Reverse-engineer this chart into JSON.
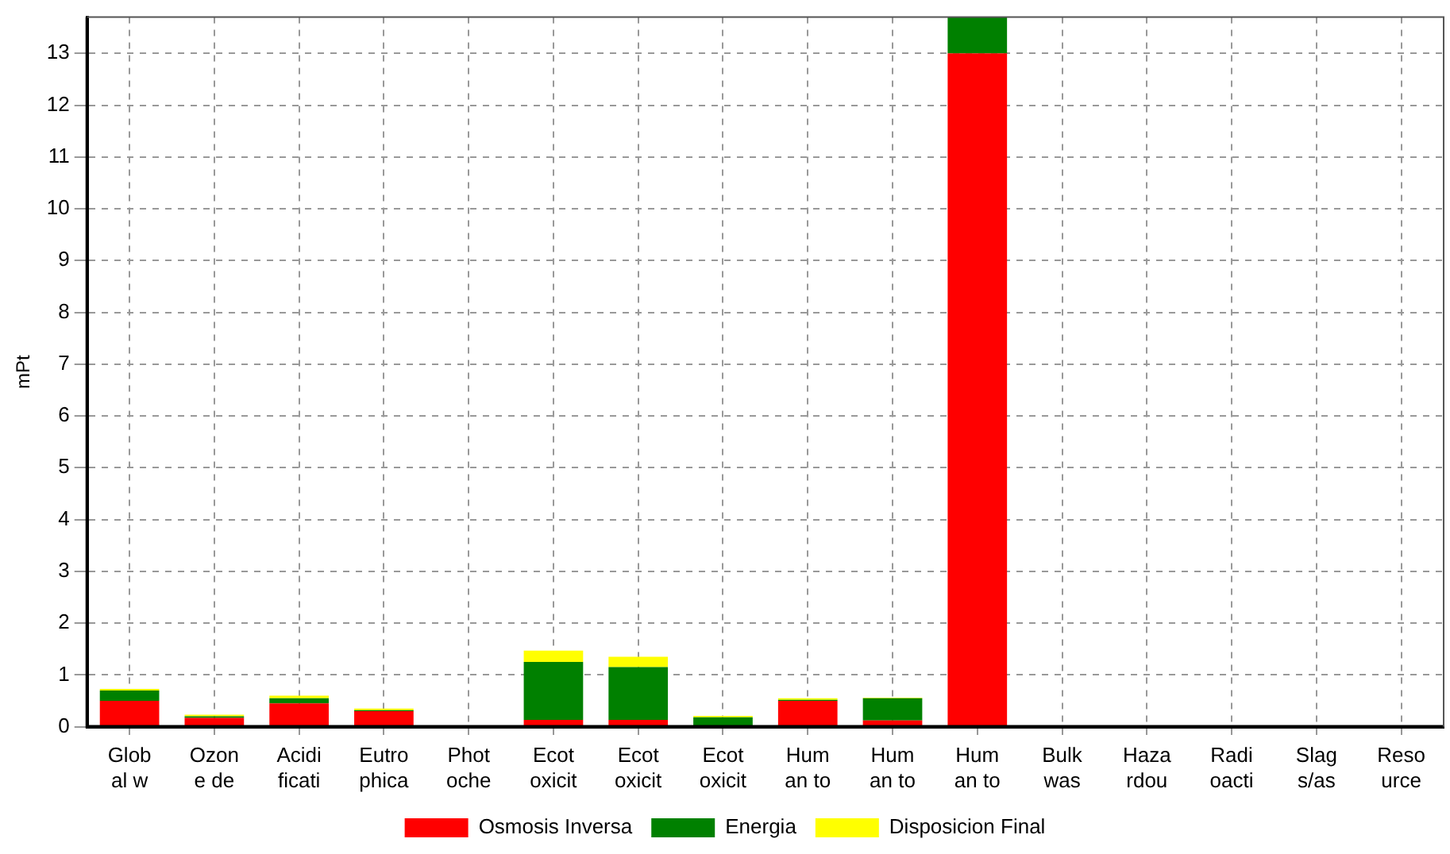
{
  "chart_data": {
    "type": "bar",
    "stacked": true,
    "ylabel": "mPt",
    "categories": [
      "Glob al w",
      "Ozon e de",
      "Acidi ficati",
      "Eutro phica",
      "Phot oche",
      "Ecot oxicit",
      "Ecot oxicit",
      "Ecot oxicit",
      "Hum an to",
      "Hum an to",
      "Hum an to",
      "Bulk was",
      "Haza rdou",
      "Radi oacti",
      "Slag s/as",
      "Reso urce"
    ],
    "series": [
      {
        "name": "Osmosis Inversa",
        "color": "#ff0000",
        "values": [
          0.5,
          0.17,
          0.45,
          0.3,
          0,
          0.13,
          0.13,
          null,
          0.5,
          0.12,
          13.0,
          0,
          0,
          0,
          0,
          0
        ]
      },
      {
        "name": "Energia",
        "color": "#008000",
        "values": [
          0.2,
          0.03,
          0.1,
          0.02,
          0,
          1.12,
          1.02,
          0.18,
          0.02,
          0.43,
          0.7,
          0,
          0,
          0,
          0,
          0
        ]
      },
      {
        "name": "Disposicion Final",
        "color": "#ffff00",
        "values": [
          0.03,
          0.03,
          0.05,
          0.03,
          null,
          0.22,
          0.2,
          0.03,
          0.03,
          0.01,
          0,
          0,
          0,
          0,
          0,
          0
        ]
      }
    ],
    "ylim": [
      0,
      13.7
    ],
    "yticks": [
      0,
      1,
      2,
      3,
      4,
      5,
      6,
      7,
      8,
      9,
      10,
      11,
      12,
      13
    ],
    "grid": true,
    "legend": "bottom"
  }
}
